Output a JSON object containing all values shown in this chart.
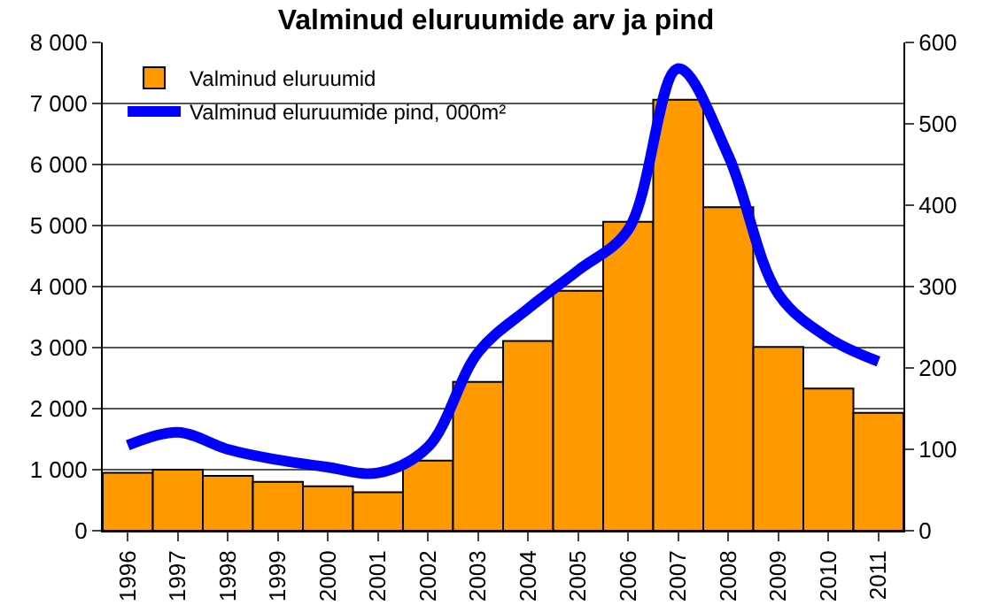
{
  "chart_data": {
    "type": "bar",
    "title": "Valminud eluruumide arv ja pind",
    "categories": [
      "1996",
      "1997",
      "1998",
      "1999",
      "2000",
      "2001",
      "2002",
      "2003",
      "2004",
      "2005",
      "2006",
      "2007",
      "2008",
      "2009",
      "2010",
      "2011"
    ],
    "series": [
      {
        "name": "Valminud eluruumid",
        "color": "#ff9900",
        "values": [
          950,
          1000,
          900,
          800,
          730,
          630,
          1150,
          2440,
          3110,
          3930,
          5060,
          7060,
          5300,
          3010,
          2330,
          1930
        ]
      },
      {
        "name": "Valminud eluruumide pind, 000m²",
        "type": "line",
        "axis": "y2",
        "color": "#0000ff",
        "values": [
          105,
          121,
          100,
          87,
          78,
          71,
          103,
          219,
          273,
          320,
          370,
          568,
          461,
          291,
          237,
          208
        ]
      }
    ],
    "ylim": [
      0,
      8000
    ],
    "yticks": [
      {
        "value": 0,
        "label": "0"
      },
      {
        "value": 1000,
        "label": "1 000"
      },
      {
        "value": 2000,
        "label": "2 000"
      },
      {
        "value": 3000,
        "label": "3 000"
      },
      {
        "value": 4000,
        "label": "4 000"
      },
      {
        "value": 5000,
        "label": "5 000"
      },
      {
        "value": 6000,
        "label": "6 000"
      },
      {
        "value": 7000,
        "label": "7 000"
      },
      {
        "value": 8000,
        "label": "8 000"
      }
    ],
    "y2lim": [
      0,
      600
    ],
    "y2ticks": [
      0,
      100,
      200,
      300,
      400,
      500,
      600
    ],
    "grid": "y",
    "legend": "top left",
    "marker": "none"
  }
}
